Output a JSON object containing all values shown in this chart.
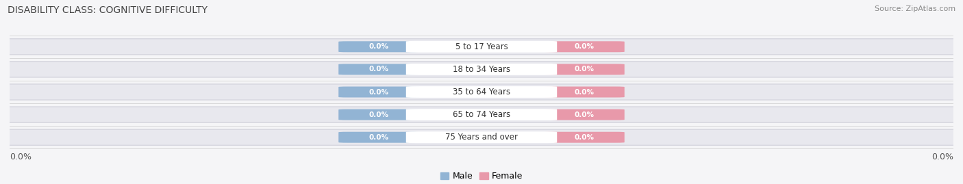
{
  "title": "DISABILITY CLASS: COGNITIVE DIFFICULTY",
  "source": "Source: ZipAtlas.com",
  "categories": [
    "5 to 17 Years",
    "18 to 34 Years",
    "35 to 64 Years",
    "65 to 74 Years",
    "75 Years and over"
  ],
  "male_values": [
    0.0,
    0.0,
    0.0,
    0.0,
    0.0
  ],
  "female_values": [
    0.0,
    0.0,
    0.0,
    0.0,
    0.0
  ],
  "male_color": "#92b4d4",
  "female_color": "#e899aa",
  "bar_bg_color": "#e8e8ee",
  "bar_border_color": "#d0d0da",
  "axis_label_left": "0.0%",
  "axis_label_right": "0.0%",
  "max_val": 1.0,
  "background_color": "#f5f5f7",
  "plot_bg_color": "#f5f5f7",
  "title_fontsize": 10,
  "source_fontsize": 8,
  "tick_fontsize": 9,
  "legend_fontsize": 9
}
